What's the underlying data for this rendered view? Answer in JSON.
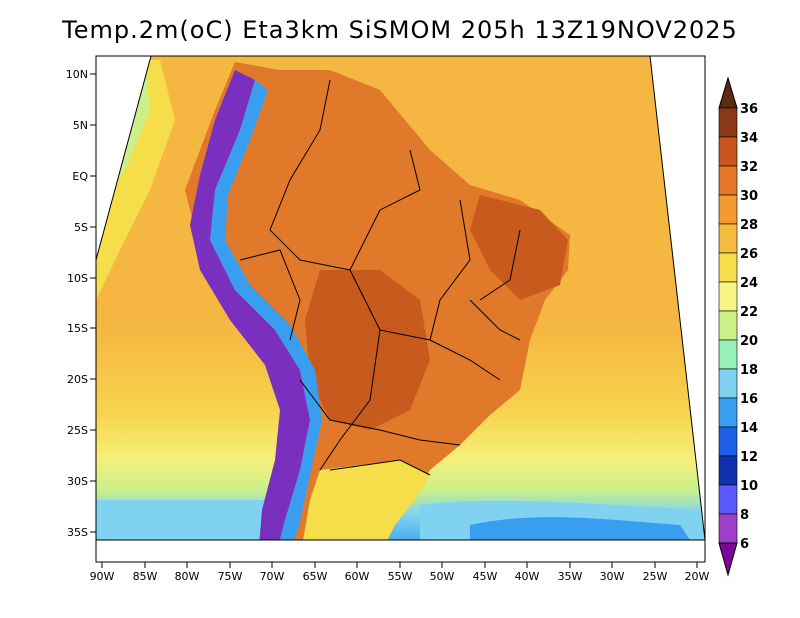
{
  "title": "Temp.2m(oC) Eta3km SiSMOM 205h 13Z19NOV2025",
  "colors": {
    "ocean_warm": "#f5b642",
    "ocean_mild": "#f7d24c",
    "ocean_cool": "#f5f07a",
    "ocean_cooler": "#c9f08a",
    "ocean_cold": "#7fd3f0",
    "ocean_colder": "#3a9ef0",
    "land_hot": "#e07a2a",
    "land_very_hot": "#c85a1e",
    "andes_cold": "#7a2fbf",
    "border": "#000000"
  },
  "x_ticks": [
    "90W",
    "85W",
    "80W",
    "75W",
    "70W",
    "65W",
    "60W",
    "55W",
    "50W",
    "45W",
    "40W",
    "35W",
    "30W",
    "25W",
    "20W"
  ],
  "y_ticks": [
    "10N",
    "5N",
    "EQ",
    "5S",
    "10S",
    "15S",
    "20S",
    "25S",
    "30S",
    "35S"
  ],
  "colorbar": {
    "labels": [
      "36",
      "34",
      "32",
      "30",
      "28",
      "26",
      "24",
      "22",
      "20",
      "18",
      "16",
      "14",
      "12",
      "10",
      "8",
      "6"
    ],
    "colors": [
      "#5a2a14",
      "#8a3a18",
      "#c8561e",
      "#e6782a",
      "#f39a32",
      "#f6bb3e",
      "#f6de4a",
      "#f6f482",
      "#cdf28c",
      "#96f0b8",
      "#7fd3f0",
      "#3a9ef0",
      "#1f5ee6",
      "#1030b0",
      "#0808a0",
      "#5a5aff",
      "#a040c8",
      "#7a0898"
    ]
  }
}
